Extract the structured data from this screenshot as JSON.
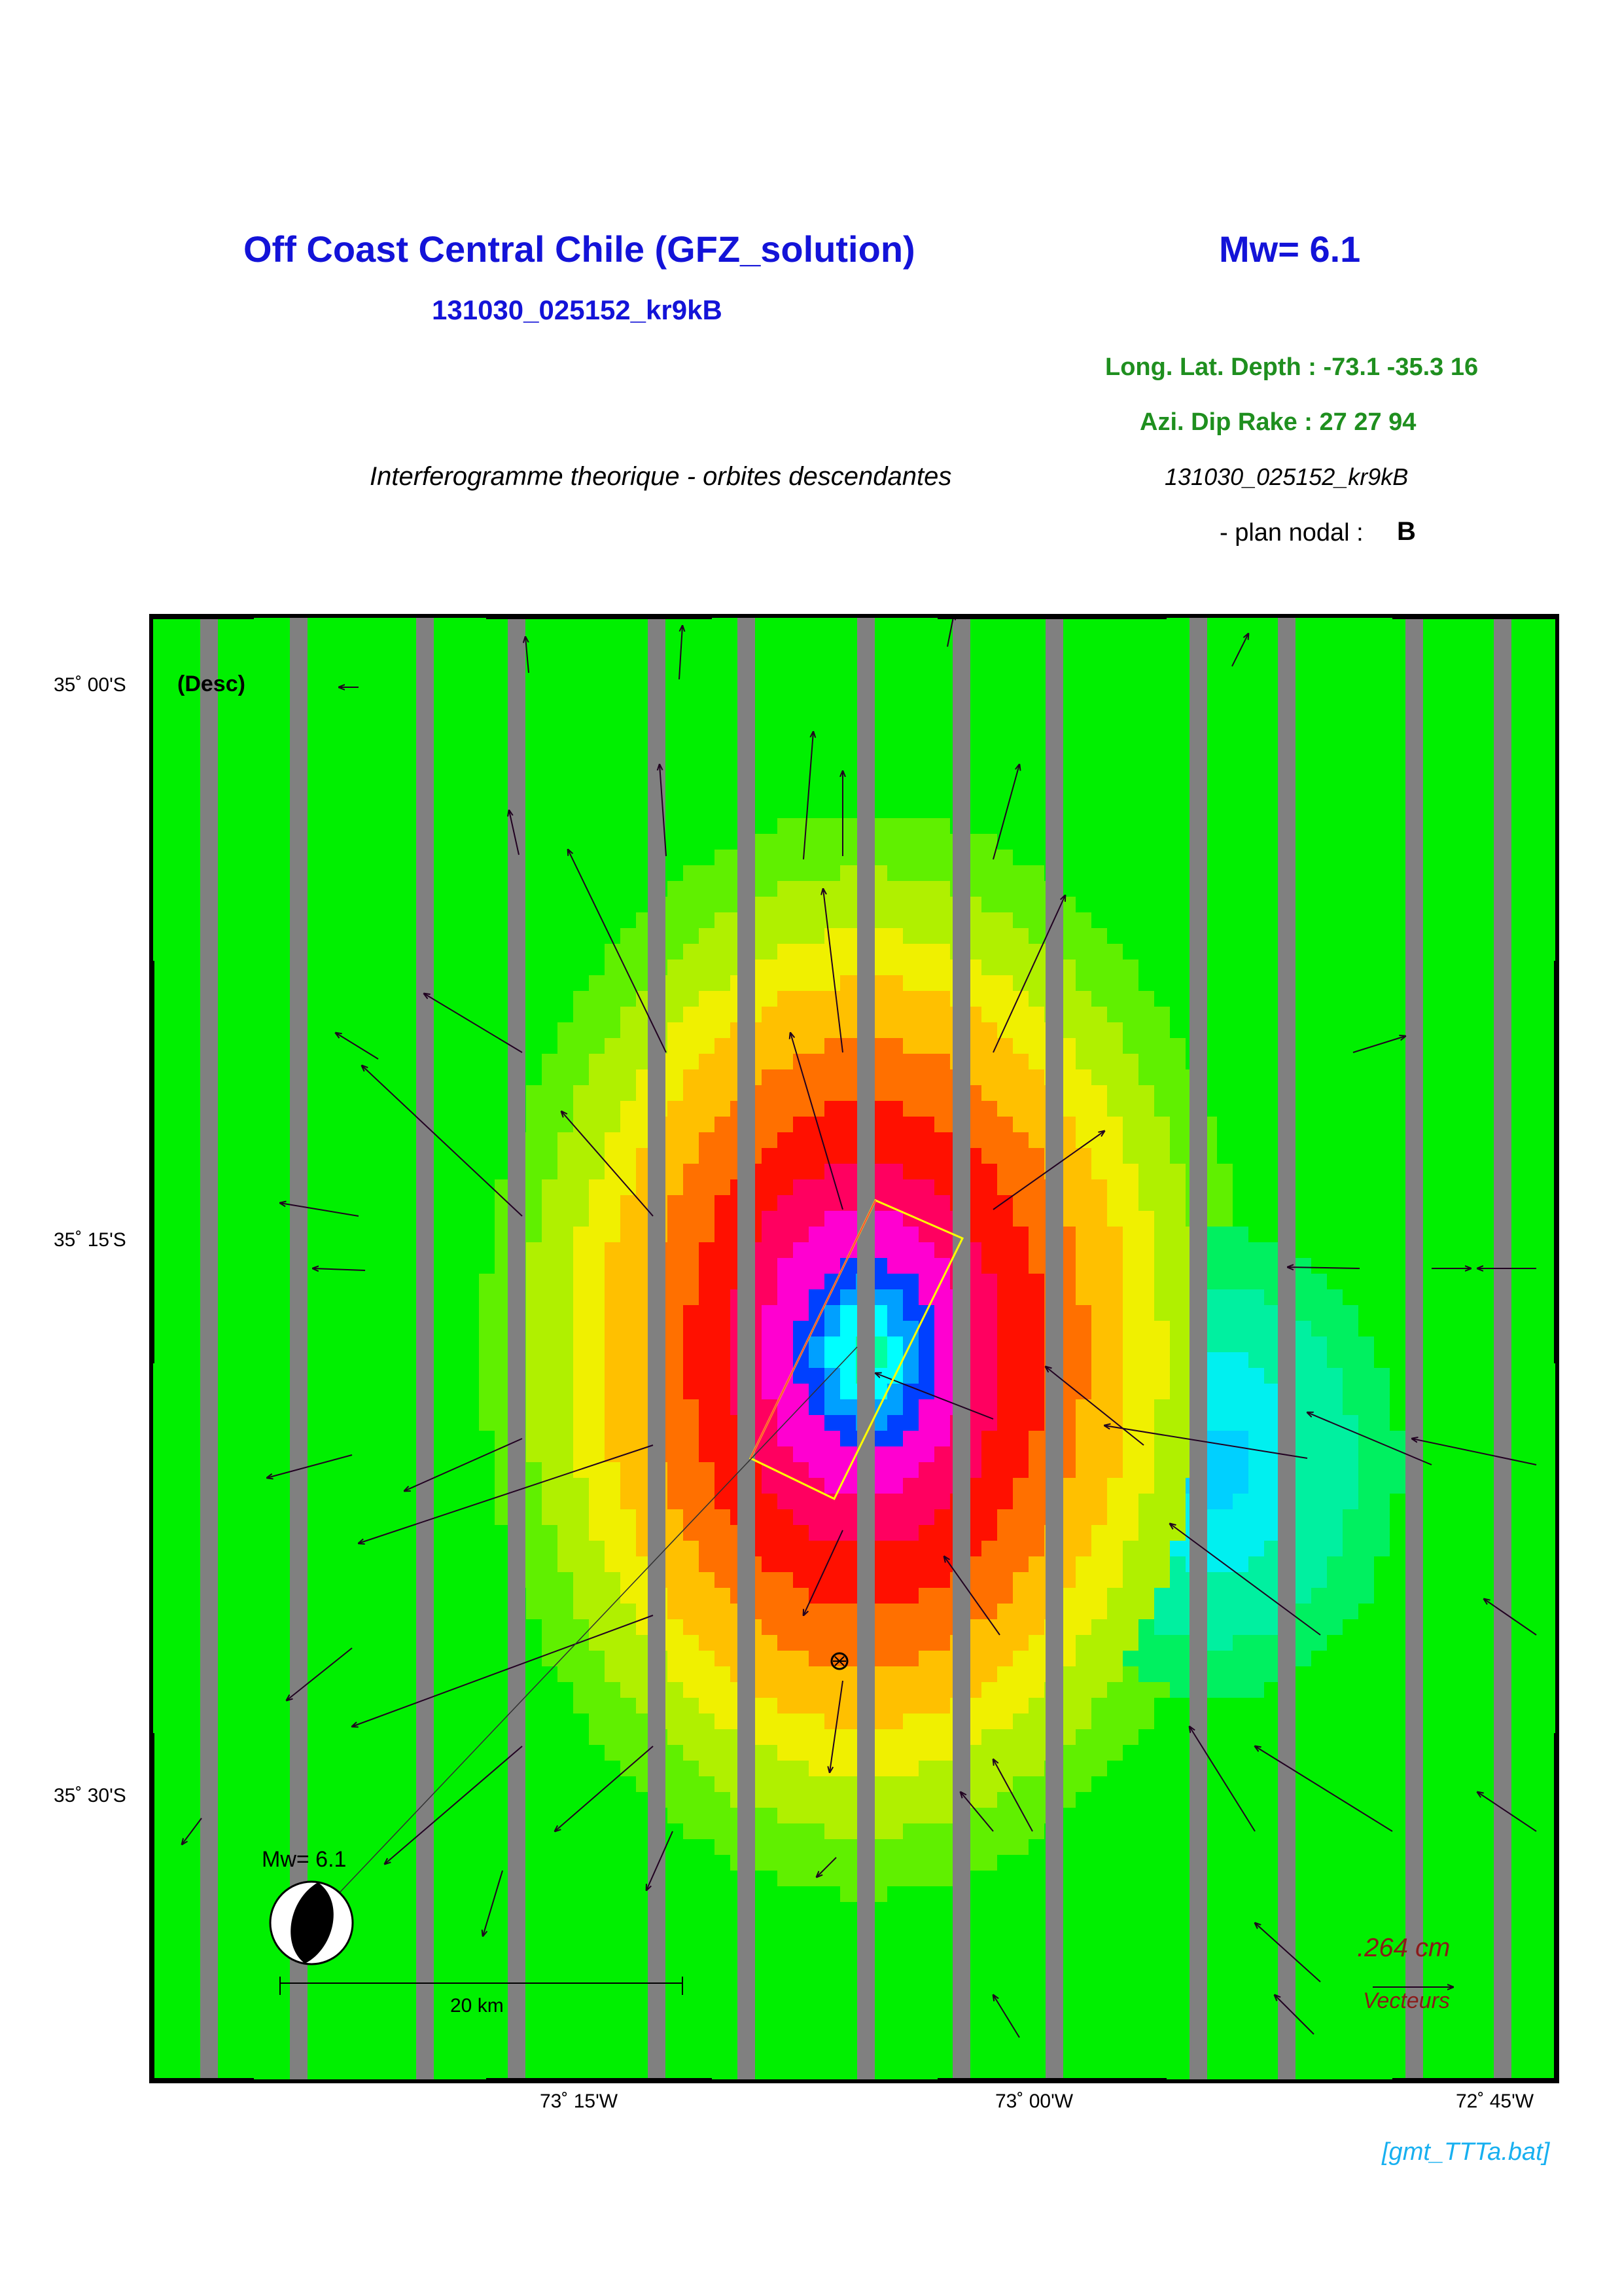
{
  "header": {
    "title": "Off Coast Central Chile (GFZ_solution)",
    "magnitude": "Mw= 6.1",
    "event_id": "131030_025152_kr9kB",
    "location_params": "Long. Lat. Depth : -73.1 -35.3 16",
    "mechanism_params": "Azi.  Dip   Rake :  27 27 94",
    "subtitle": "Interferogramme theorique - orbites descendantes",
    "event_id_italic": "131030_025152_kr9kB",
    "nodal_plane_label": "- plan nodal :",
    "nodal_plane_value": "B"
  },
  "map": {
    "orbit_label": "(Desc)",
    "lat_ticks": [
      "35˚ 00'S",
      "35˚ 15'S",
      "35˚ 30'S"
    ],
    "lon_ticks": [
      "73˚ 15'W",
      "73˚ 00'W",
      "72˚ 45'W"
    ],
    "beachball_label": "Mw= 6.1",
    "scale_bar_label": "20 km",
    "vector_scale_value": ".264  cm",
    "vector_scale_label": "Vecteurs",
    "colors": {
      "background": "#00f000",
      "stripe": "#808080",
      "fault_outline": "#ffff00",
      "vector": "#200020"
    }
  },
  "footer": {
    "script_name": "[gmt_TTTa.bat]"
  }
}
